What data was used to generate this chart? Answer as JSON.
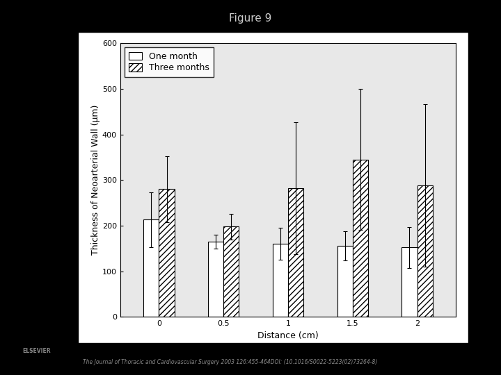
{
  "title": "Figure 9",
  "xlabel": "Distance (cm)",
  "ylabel": "Thickness of Neoarterial Wall (μm)",
  "x_positions": [
    0,
    0.5,
    1,
    1.5,
    2
  ],
  "one_month_values": [
    213,
    165,
    160,
    155,
    152
  ],
  "three_month_values": [
    280,
    198,
    282,
    345,
    288
  ],
  "one_month_errors": [
    60,
    15,
    35,
    32,
    45
  ],
  "three_month_errors": [
    72,
    28,
    145,
    155,
    178
  ],
  "ylim": [
    0,
    600
  ],
  "yticks": [
    0,
    100,
    200,
    300,
    400,
    500,
    600
  ],
  "bar_width": 0.12,
  "background_color": "#000000",
  "chart_bg_color": "#e8e8e8",
  "legend_one_month": "One month",
  "legend_three_months": "Three months",
  "figure_title_fontsize": 11,
  "axis_label_fontsize": 9,
  "tick_fontsize": 8,
  "legend_fontsize": 9,
  "footer_text": "The Journal of Thoracic and Cardiovascular Surgery 2003 126:455-464DOI: (10.1016/S0022-5223(02)73264-8)"
}
